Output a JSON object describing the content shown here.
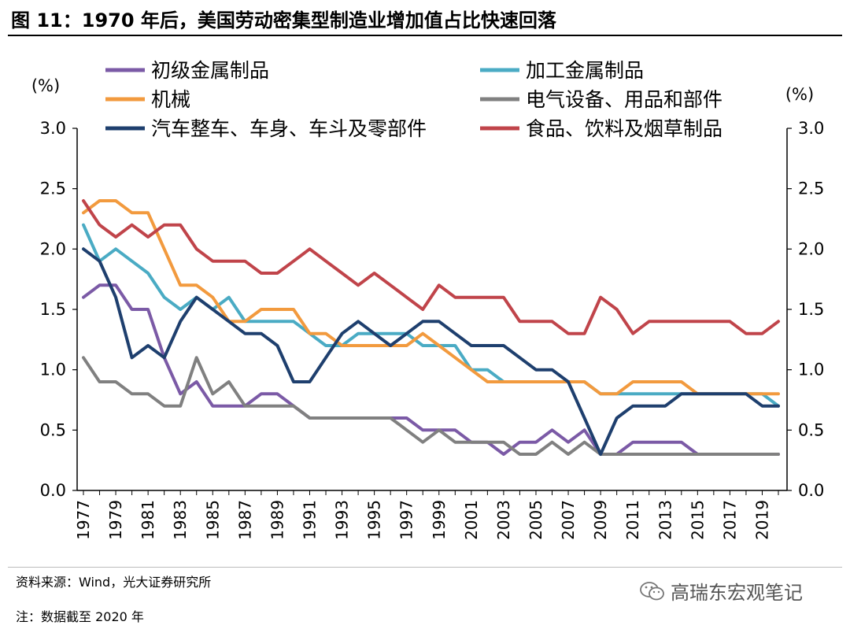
{
  "header": {
    "title": "图 11：1970 年后，美国劳动密集型制造业增加值占比快速回落"
  },
  "footer": {
    "source": "资料来源：Wind，光大证券研究所",
    "note": "注：数据截至 2020 年",
    "watermark": "高瑞东宏观笔记"
  },
  "chart_data": {
    "type": "line",
    "title": "图 11：1970 年后，美国劳动密集型制造业增加值占比快速回落",
    "ylabel_left": "(%)",
    "ylabel_right": "(%)",
    "ylim": [
      0,
      3
    ],
    "yticks": [
      "0.0",
      "0.5",
      "1.0",
      "1.5",
      "2.0",
      "2.5",
      "3.0"
    ],
    "x": [
      1977,
      1978,
      1979,
      1980,
      1981,
      1982,
      1983,
      1984,
      1985,
      1986,
      1987,
      1988,
      1989,
      1990,
      1991,
      1992,
      1993,
      1994,
      1995,
      1996,
      1997,
      1998,
      1999,
      2000,
      2001,
      2002,
      2003,
      2004,
      2005,
      2006,
      2007,
      2008,
      2009,
      2010,
      2011,
      2012,
      2013,
      2014,
      2015,
      2016,
      2017,
      2018,
      2019,
      2020
    ],
    "xtick_labels": [
      "1977",
      "1979",
      "1981",
      "1983",
      "1985",
      "1987",
      "1989",
      "1991",
      "1993",
      "1995",
      "1997",
      "1999",
      "2001",
      "2003",
      "2005",
      "2007",
      "2009",
      "2011",
      "2013",
      "2015",
      "2017",
      "2019"
    ],
    "legend_position": "top",
    "series": [
      {
        "name": "初级金属制品",
        "color": "#7b5aa6",
        "values": [
          1.6,
          1.7,
          1.7,
          1.5,
          1.5,
          1.1,
          0.8,
          0.9,
          0.7,
          0.7,
          0.7,
          0.8,
          0.8,
          0.7,
          0.6,
          0.6,
          0.6,
          0.6,
          0.6,
          0.6,
          0.6,
          0.5,
          0.5,
          0.5,
          0.4,
          0.4,
          0.3,
          0.4,
          0.4,
          0.5,
          0.4,
          0.5,
          0.3,
          0.3,
          0.4,
          0.4,
          0.4,
          0.4,
          0.3,
          0.3,
          0.3,
          0.3,
          0.3,
          0.3
        ]
      },
      {
        "name": "加工金属制品",
        "color": "#4aabc4",
        "values": [
          2.2,
          1.9,
          2.0,
          1.9,
          1.8,
          1.6,
          1.5,
          1.6,
          1.5,
          1.6,
          1.4,
          1.4,
          1.4,
          1.4,
          1.3,
          1.2,
          1.2,
          1.3,
          1.3,
          1.3,
          1.3,
          1.2,
          1.2,
          1.2,
          1.0,
          1.0,
          0.9,
          0.9,
          0.9,
          0.9,
          0.9,
          0.9,
          0.8,
          0.8,
          0.8,
          0.8,
          0.8,
          0.8,
          0.8,
          0.8,
          0.8,
          0.8,
          0.8,
          0.7
        ]
      },
      {
        "name": "机械",
        "color": "#f29a3e",
        "values": [
          2.3,
          2.4,
          2.4,
          2.3,
          2.3,
          2.0,
          1.7,
          1.7,
          1.6,
          1.4,
          1.4,
          1.5,
          1.5,
          1.5,
          1.3,
          1.3,
          1.2,
          1.2,
          1.2,
          1.2,
          1.2,
          1.3,
          1.2,
          1.1,
          1.0,
          0.9,
          0.9,
          0.9,
          0.9,
          0.9,
          0.9,
          0.9,
          0.8,
          0.8,
          0.9,
          0.9,
          0.9,
          0.9,
          0.8,
          0.8,
          0.8,
          0.8,
          0.8,
          0.8
        ]
      },
      {
        "name": "电气设备、用品和部件",
        "color": "#808080",
        "values": [
          1.1,
          0.9,
          0.9,
          0.8,
          0.8,
          0.7,
          0.7,
          1.1,
          0.8,
          0.9,
          0.7,
          0.7,
          0.7,
          0.7,
          0.6,
          0.6,
          0.6,
          0.6,
          0.6,
          0.6,
          0.5,
          0.4,
          0.5,
          0.4,
          0.4,
          0.4,
          0.4,
          0.3,
          0.3,
          0.4,
          0.3,
          0.4,
          0.3,
          0.3,
          0.3,
          0.3,
          0.3,
          0.3,
          0.3,
          0.3,
          0.3,
          0.3,
          0.3,
          0.3
        ]
      },
      {
        "name": "汽车整车、车身、车斗及零部件",
        "color": "#1e3f6e",
        "values": [
          2.0,
          1.9,
          1.6,
          1.1,
          1.2,
          1.1,
          1.4,
          1.6,
          1.5,
          1.4,
          1.3,
          1.3,
          1.2,
          0.9,
          0.9,
          1.1,
          1.3,
          1.4,
          1.3,
          1.2,
          1.3,
          1.4,
          1.4,
          1.3,
          1.2,
          1.2,
          1.2,
          1.1,
          1.0,
          1.0,
          0.9,
          0.6,
          0.3,
          0.6,
          0.7,
          0.7,
          0.7,
          0.8,
          0.8,
          0.8,
          0.8,
          0.8,
          0.7,
          0.7
        ]
      },
      {
        "name": "食品、饮料及烟草制品",
        "color": "#c0444a",
        "values": [
          2.4,
          2.2,
          2.1,
          2.2,
          2.1,
          2.2,
          2.2,
          2.0,
          1.9,
          1.9,
          1.9,
          1.8,
          1.8,
          1.9,
          2.0,
          1.9,
          1.8,
          1.7,
          1.8,
          1.7,
          1.6,
          1.5,
          1.7,
          1.6,
          1.6,
          1.6,
          1.6,
          1.4,
          1.4,
          1.4,
          1.3,
          1.3,
          1.6,
          1.5,
          1.3,
          1.4,
          1.4,
          1.4,
          1.4,
          1.4,
          1.4,
          1.3,
          1.3,
          1.4
        ]
      }
    ]
  }
}
